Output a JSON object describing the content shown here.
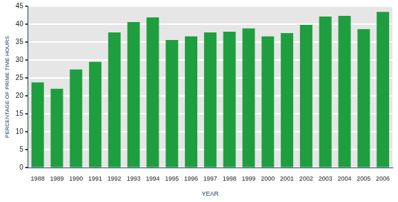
{
  "chart_data": {
    "type": "bar",
    "categories": [
      "1988",
      "1989",
      "1990",
      "1991",
      "1992",
      "1993",
      "1994",
      "1995",
      "1996",
      "1997",
      "1998",
      "1999",
      "2000",
      "2001",
      "2002",
      "2003",
      "2004",
      "2005",
      "2006"
    ],
    "values": [
      23.8,
      22.0,
      27.4,
      29.5,
      37.7,
      40.6,
      41.9,
      35.6,
      36.6,
      37.7,
      37.9,
      38.8,
      36.6,
      37.5,
      39.8,
      42.1,
      42.3,
      38.6,
      43.4
    ],
    "color": "#1f9e3f",
    "x_label": "YEAR",
    "y_label": "PERCENTAGE OF PRIME TIME HOURS",
    "ylim": [
      0,
      45
    ],
    "yticks": [
      0,
      5,
      10,
      15,
      20,
      25,
      30,
      35,
      40,
      45
    ],
    "grid": true
  }
}
